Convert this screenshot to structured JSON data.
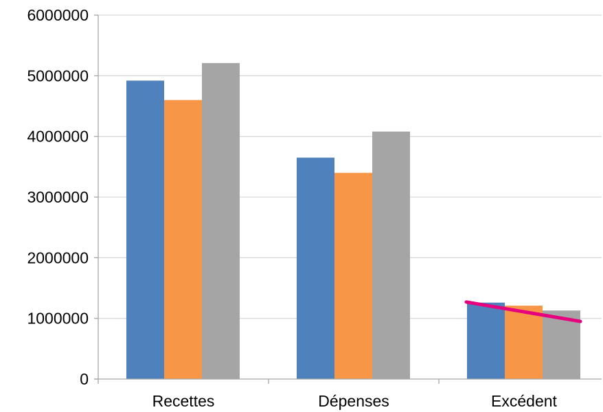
{
  "chart_data": {
    "type": "bar",
    "categories": [
      "Recettes",
      "Dépenses",
      "Excédent"
    ],
    "series": [
      {
        "values": [
          4920000,
          3650000,
          1260000
        ],
        "color": "#4f81bd"
      },
      {
        "values": [
          4600000,
          3400000,
          1210000
        ],
        "color": "#f79646"
      },
      {
        "values": [
          5210000,
          4080000,
          1130000
        ],
        "color": "#a5a5a5"
      }
    ],
    "ylim": [
      0,
      6000000
    ],
    "yticks": [
      0,
      1000000,
      2000000,
      3000000,
      4000000,
      5000000,
      6000000
    ],
    "ytick_labels": [
      "0",
      "1000000",
      "2000000",
      "3000000",
      "4000000",
      "5000000",
      "6000000"
    ],
    "grid": true,
    "overlay_line": {
      "category": "Excédent",
      "start_value": 1270000,
      "end_value": 950000,
      "color": "#e6007e"
    }
  }
}
